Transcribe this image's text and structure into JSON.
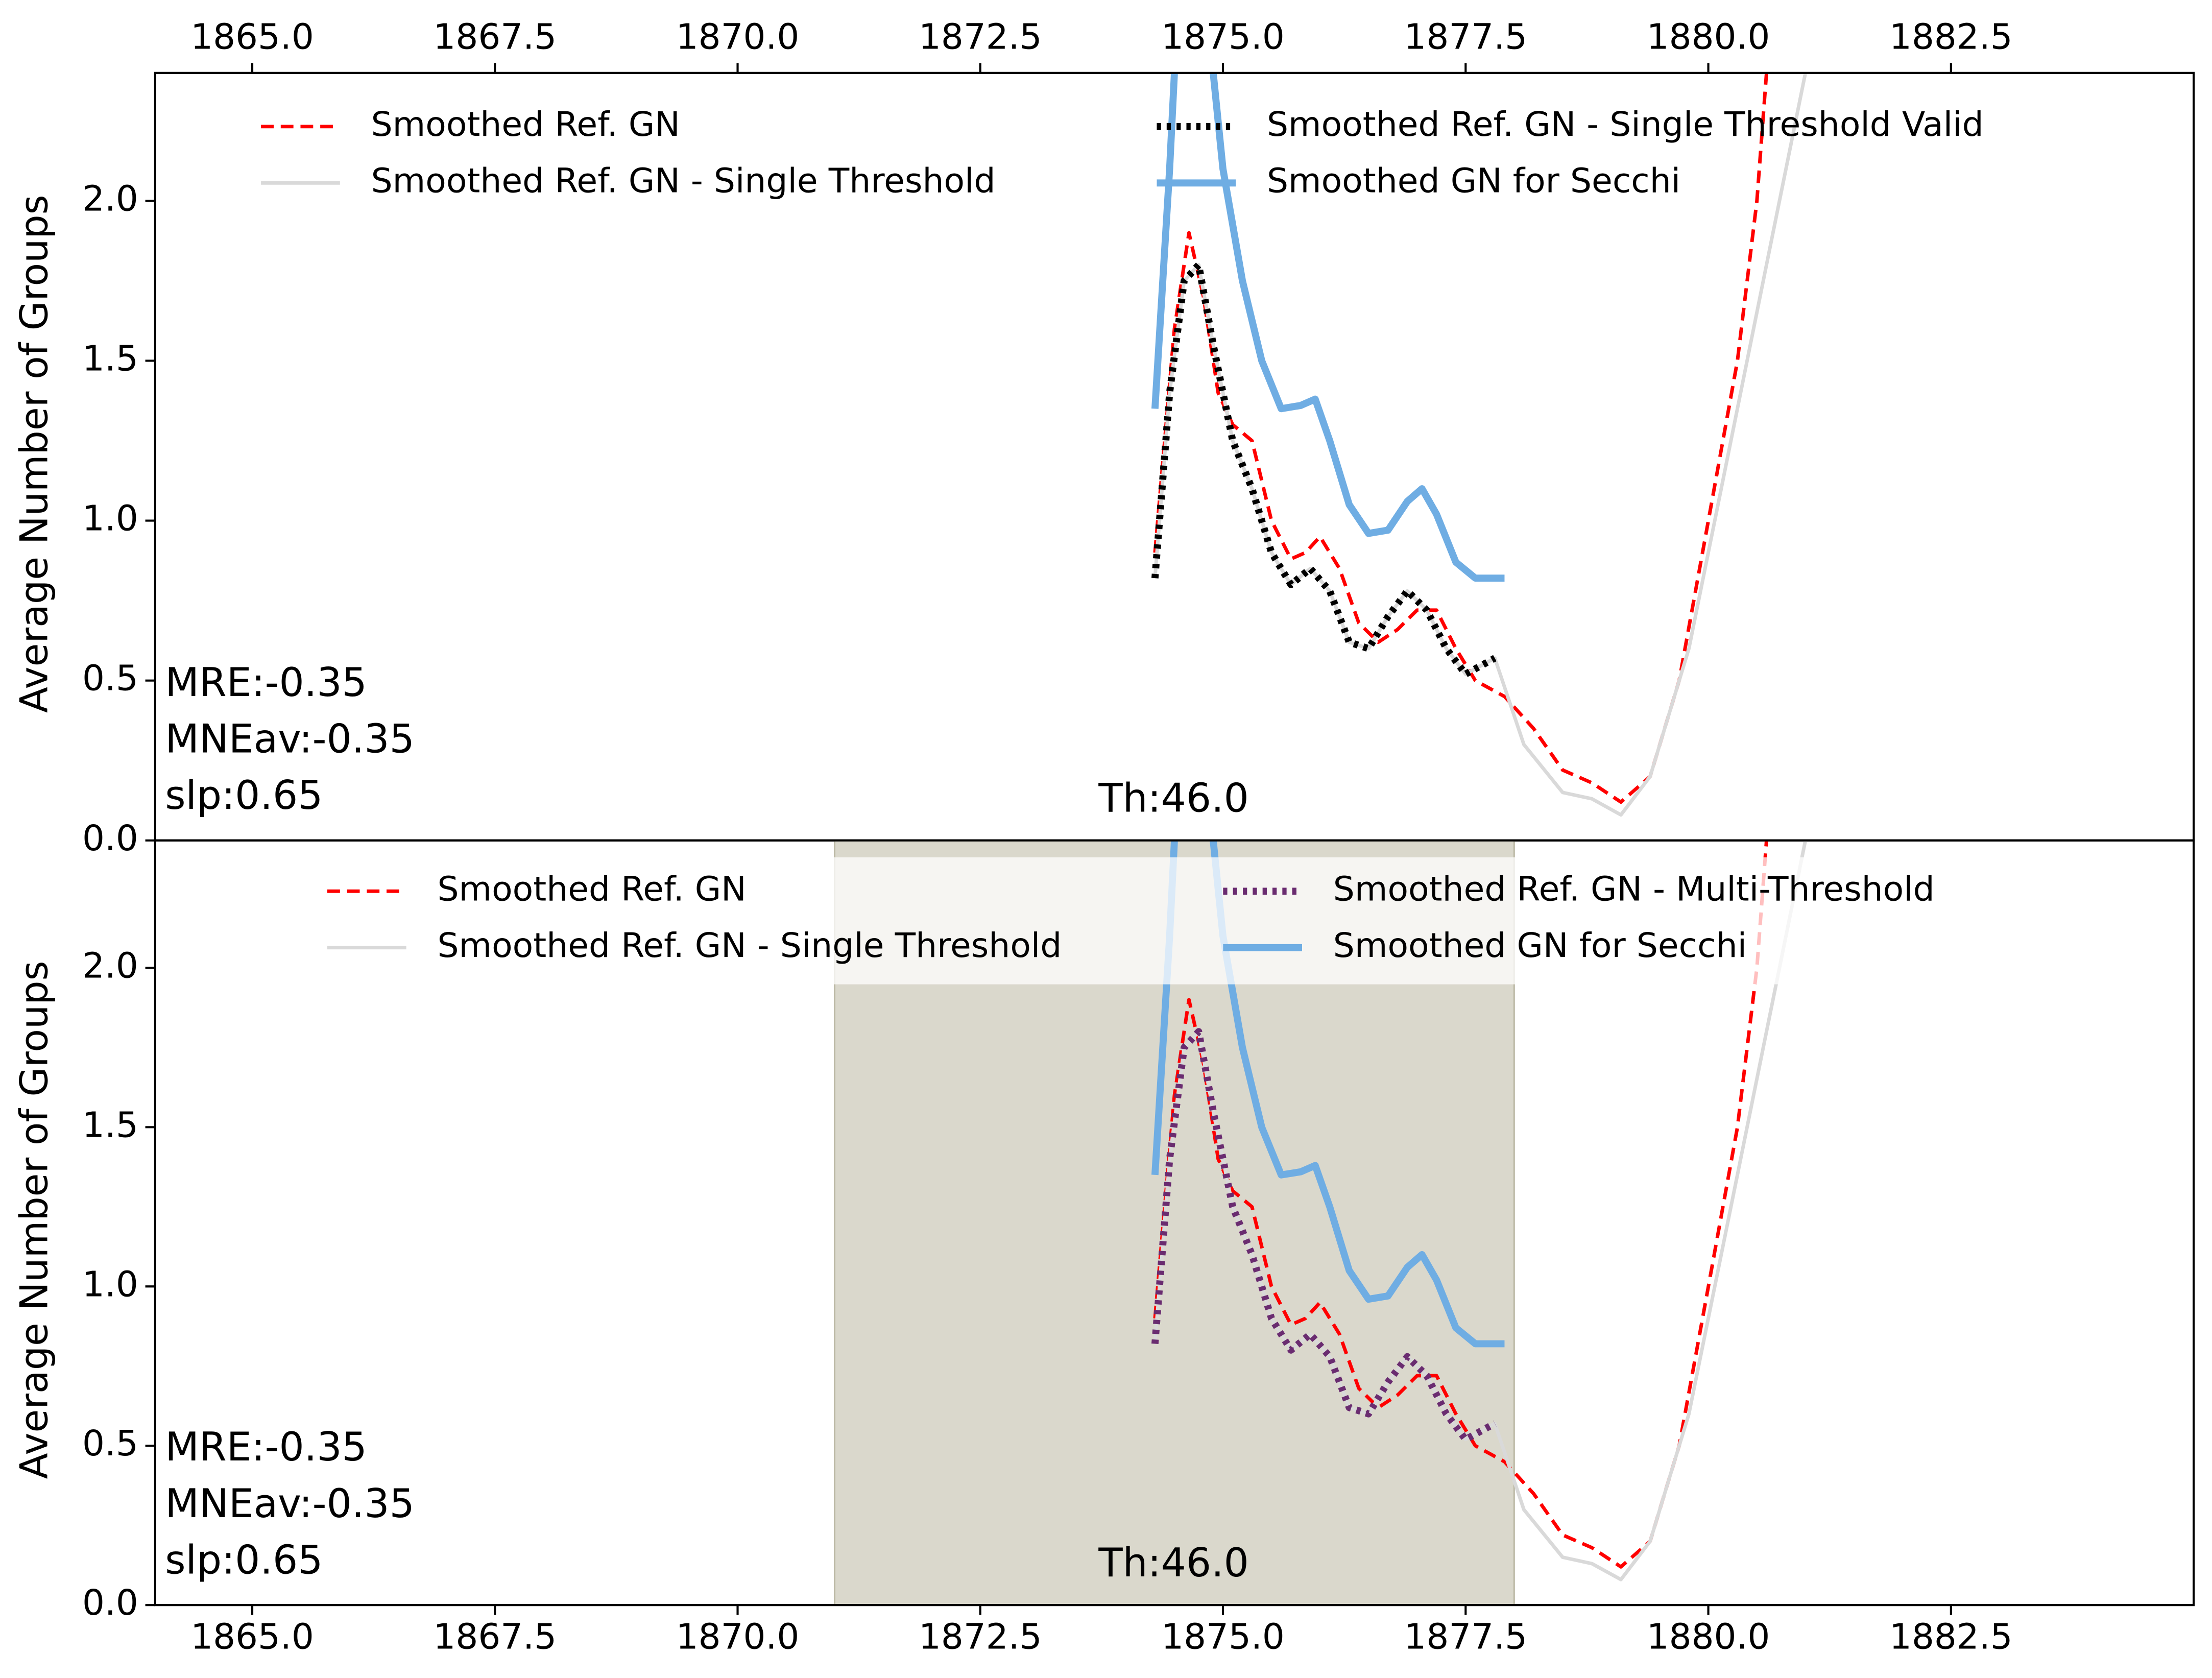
{
  "chart_data": [
    {
      "type": "line",
      "ylabel": "Average Number of Groups",
      "xaxis_position": "top",
      "xlim": [
        1864,
        1885
      ],
      "ylim": [
        0,
        2.4
      ],
      "xticks": [
        {
          "value": 1865,
          "label": "1865.0"
        },
        {
          "value": 1867.5,
          "label": "1867.5"
        },
        {
          "value": 1870,
          "label": "1870.0"
        },
        {
          "value": 1872.5,
          "label": "1872.5"
        },
        {
          "value": 1875,
          "label": "1875.0"
        },
        {
          "value": 1877.5,
          "label": "1877.5"
        },
        {
          "value": 1880,
          "label": "1880.0"
        },
        {
          "value": 1882.5,
          "label": "1882.5"
        }
      ],
      "yticks": [
        {
          "value": 0,
          "label": "0.0"
        },
        0.5,
        {
          "value": 1,
          "label": "1.0"
        },
        1.5,
        {
          "value": 2,
          "label": "2.0"
        }
      ],
      "annotations": [
        "MRE:-0.35",
        "MNEav:-0.35",
        "slp:0.65"
      ],
      "threshold_label": "Th:46.0",
      "legend_columns": 2,
      "series": [
        {
          "name": "Smoothed Ref. GN",
          "color": "#ff0000",
          "style": "dashed",
          "x": [
            1874.3,
            1874.5,
            1874.65,
            1874.8,
            1874.95,
            1875.1,
            1875.3,
            1875.5,
            1875.7,
            1875.85,
            1876.0,
            1876.2,
            1876.4,
            1876.6,
            1876.8,
            1877.0,
            1877.2,
            1877.4,
            1877.6,
            1877.9,
            1878.2,
            1878.5,
            1878.8,
            1879.1,
            1879.4,
            1879.7,
            1880.0,
            1880.3,
            1880.5,
            1880.6
          ],
          "values": [
            0.9,
            1.6,
            1.9,
            1.7,
            1.4,
            1.3,
            1.25,
            1.0,
            0.88,
            0.9,
            0.95,
            0.85,
            0.68,
            0.62,
            0.66,
            0.72,
            0.72,
            0.6,
            0.5,
            0.45,
            0.35,
            0.22,
            0.18,
            0.12,
            0.2,
            0.5,
            1.0,
            1.5,
            2.0,
            2.4
          ]
        },
        {
          "name": "Smoothed Ref. GN - Single Threshold",
          "color": "#d9d9d9",
          "style": "solid",
          "x": [
            1874.3,
            1874.45,
            1874.6,
            1874.75,
            1874.9,
            1875.1,
            1875.3,
            1875.5,
            1875.7,
            1875.9,
            1876.1,
            1876.3,
            1876.5,
            1876.7,
            1876.9,
            1877.1,
            1877.3,
            1877.5,
            1877.8,
            1878.1,
            1878.5,
            1878.8,
            1879.1,
            1879.4,
            1879.8,
            1880.2,
            1880.6,
            1881.0
          ],
          "values": [
            0.82,
            1.4,
            1.75,
            1.8,
            1.55,
            1.25,
            1.1,
            0.9,
            0.8,
            0.85,
            0.78,
            0.62,
            0.6,
            0.7,
            0.78,
            0.72,
            0.6,
            0.52,
            0.57,
            0.3,
            0.15,
            0.13,
            0.08,
            0.2,
            0.6,
            1.2,
            1.8,
            2.4
          ]
        },
        {
          "name": "Smoothed Ref. GN - Single Threshold Valid",
          "color": "#000000",
          "style": "dotted",
          "x": [
            1874.3,
            1874.45,
            1874.6,
            1874.75,
            1874.9,
            1875.1,
            1875.3,
            1875.5,
            1875.7,
            1875.9,
            1876.1,
            1876.3,
            1876.5,
            1876.7,
            1876.9,
            1877.1,
            1877.3,
            1877.5,
            1877.8
          ],
          "values": [
            0.82,
            1.4,
            1.75,
            1.8,
            1.55,
            1.25,
            1.1,
            0.9,
            0.8,
            0.85,
            0.78,
            0.62,
            0.6,
            0.7,
            0.78,
            0.72,
            0.6,
            0.52,
            0.57
          ]
        },
        {
          "name": "Smoothed GN for Secchi",
          "color": "#6fade3",
          "style": "thick",
          "x": [
            1874.3,
            1874.45,
            1874.5,
            1874.7,
            1874.9,
            1875.0,
            1875.2,
            1875.4,
            1875.6,
            1875.8,
            1875.95,
            1876.1,
            1876.3,
            1876.5,
            1876.7,
            1876.9,
            1877.05,
            1877.2,
            1877.4,
            1877.6,
            1877.9
          ],
          "values": [
            1.35,
            2.1,
            2.4,
            null,
            2.4,
            2.1,
            1.75,
            1.5,
            1.35,
            1.36,
            1.38,
            1.25,
            1.05,
            0.96,
            0.97,
            1.06,
            1.1,
            1.02,
            0.87,
            0.82,
            0.82
          ]
        }
      ]
    },
    {
      "type": "line",
      "ylabel": "Average Number of Groups",
      "xaxis_position": "bottom",
      "xlim": [
        1864,
        1885
      ],
      "ylim": [
        0,
        2.4
      ],
      "shaded_span": [
        1871,
        1878
      ],
      "shade_color": "#dad8cc",
      "xticks": [
        {
          "value": 1865,
          "label": "1865.0"
        },
        {
          "value": 1867.5,
          "label": "1867.5"
        },
        {
          "value": 1870,
          "label": "1870.0"
        },
        {
          "value": 1872.5,
          "label": "1872.5"
        },
        {
          "value": 1875,
          "label": "1875.0"
        },
        {
          "value": 1877.5,
          "label": "1877.5"
        },
        {
          "value": 1880,
          "label": "1880.0"
        },
        {
          "value": 1882.5,
          "label": "1882.5"
        }
      ],
      "yticks": [
        {
          "value": 0,
          "label": "0.0"
        },
        0.5,
        {
          "value": 1,
          "label": "1.0"
        },
        1.5,
        {
          "value": 2,
          "label": "2.0"
        }
      ],
      "annotations": [
        "MRE:-0.35",
        "MNEav:-0.35",
        "slp:0.65"
      ],
      "threshold_label": "Th:46.0",
      "legend_columns": 2,
      "series": [
        {
          "name": "Smoothed Ref. GN",
          "color": "#ff0000",
          "style": "dashed",
          "x": [
            1874.3,
            1874.5,
            1874.65,
            1874.8,
            1874.95,
            1875.1,
            1875.3,
            1875.5,
            1875.7,
            1875.85,
            1876.0,
            1876.2,
            1876.4,
            1876.6,
            1876.8,
            1877.0,
            1877.2,
            1877.4,
            1877.6,
            1877.9,
            1878.2,
            1878.5,
            1878.8,
            1879.1,
            1879.4,
            1879.7,
            1880.0,
            1880.3,
            1880.5,
            1880.6
          ],
          "values": [
            0.9,
            1.6,
            1.9,
            1.7,
            1.4,
            1.3,
            1.25,
            1.0,
            0.88,
            0.9,
            0.95,
            0.85,
            0.68,
            0.62,
            0.66,
            0.72,
            0.72,
            0.6,
            0.5,
            0.45,
            0.35,
            0.22,
            0.18,
            0.12,
            0.2,
            0.5,
            1.0,
            1.5,
            2.0,
            2.4
          ]
        },
        {
          "name": "Smoothed Ref. GN - Single Threshold",
          "color": "#d9d9d9",
          "style": "solid",
          "x": [
            1874.3,
            1874.45,
            1874.6,
            1874.75,
            1874.9,
            1875.1,
            1875.3,
            1875.5,
            1875.7,
            1875.9,
            1876.1,
            1876.3,
            1876.5,
            1876.7,
            1876.9,
            1877.1,
            1877.3,
            1877.5,
            1877.8,
            1878.1,
            1878.5,
            1878.8,
            1879.1,
            1879.4,
            1879.8,
            1880.2,
            1880.6,
            1881.0
          ],
          "values": [
            0.82,
            1.4,
            1.75,
            1.8,
            1.55,
            1.25,
            1.1,
            0.9,
            0.8,
            0.85,
            0.78,
            0.62,
            0.6,
            0.7,
            0.78,
            0.72,
            0.6,
            0.52,
            0.57,
            0.3,
            0.15,
            0.13,
            0.08,
            0.2,
            0.6,
            1.2,
            1.8,
            2.4
          ]
        },
        {
          "name": "Smoothed Ref. GN - Multi-Threshold",
          "color": "#6a2c70",
          "style": "dotted",
          "x": [
            1874.3,
            1874.45,
            1874.6,
            1874.75,
            1874.9,
            1875.1,
            1875.3,
            1875.5,
            1875.7,
            1875.9,
            1876.1,
            1876.3,
            1876.5,
            1876.7,
            1876.9,
            1877.1,
            1877.3,
            1877.5,
            1877.8
          ],
          "values": [
            0.82,
            1.4,
            1.75,
            1.8,
            1.55,
            1.25,
            1.1,
            0.9,
            0.8,
            0.85,
            0.78,
            0.62,
            0.6,
            0.7,
            0.78,
            0.72,
            0.6,
            0.52,
            0.57
          ]
        },
        {
          "name": "Smoothed GN for Secchi",
          "color": "#6fade3",
          "style": "thick",
          "x": [
            1874.3,
            1874.45,
            1874.5,
            1874.7,
            1874.9,
            1875.0,
            1875.2,
            1875.4,
            1875.6,
            1875.8,
            1875.95,
            1876.1,
            1876.3,
            1876.5,
            1876.7,
            1876.9,
            1877.05,
            1877.2,
            1877.4,
            1877.6,
            1877.9
          ],
          "values": [
            1.35,
            2.1,
            2.4,
            null,
            2.4,
            2.1,
            1.75,
            1.5,
            1.35,
            1.36,
            1.38,
            1.25,
            1.05,
            0.96,
            0.97,
            1.06,
            1.1,
            1.02,
            0.87,
            0.82,
            0.82
          ]
        }
      ]
    }
  ]
}
